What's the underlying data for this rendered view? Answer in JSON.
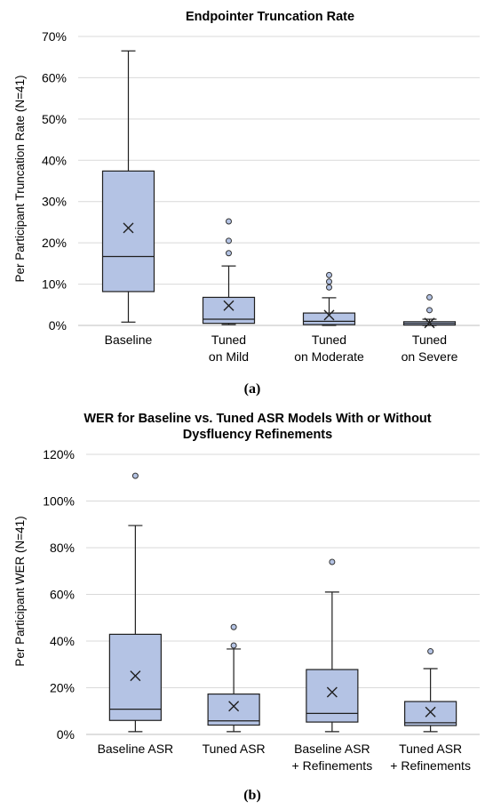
{
  "chart_data": [
    {
      "type": "box",
      "title": "Endpointer Truncation Rate",
      "ylabel": "Per Participant Truncation Rate (N=41)",
      "ylim": [
        0,
        70
      ],
      "yticks": [
        "0%",
        "10%",
        "20%",
        "30%",
        "40%",
        "50%",
        "60%",
        "70%"
      ],
      "grid": true,
      "caption": "(a)",
      "categories": [
        [
          "Baseline"
        ],
        [
          "Tuned",
          "on Mild"
        ],
        [
          "Tuned",
          "on Moderate"
        ],
        [
          "Tuned",
          "on Severe"
        ]
      ],
      "boxes": [
        {
          "min": 0.8,
          "q1": 8.2,
          "median": 16.7,
          "q3": 37.4,
          "max": 66.5,
          "mean": 23.6,
          "outliers": []
        },
        {
          "min": 0.2,
          "q1": 0.5,
          "median": 1.5,
          "q3": 6.8,
          "max": 14.4,
          "mean": 4.8,
          "outliers": [
            17.5,
            20.5,
            25.2
          ]
        },
        {
          "min": 0.0,
          "q1": 0.2,
          "median": 1.0,
          "q3": 3.0,
          "max": 6.7,
          "mean": 2.5,
          "outliers": [
            9.2,
            10.6,
            12.2
          ]
        },
        {
          "min": 0.0,
          "q1": 0.1,
          "median": 0.5,
          "q3": 0.9,
          "max": 1.5,
          "mean": 0.6,
          "outliers": [
            3.7,
            6.8
          ]
        }
      ]
    },
    {
      "type": "box",
      "title": "WER for Baseline vs. Tuned ASR Models With or Without Dysfluency Refinements",
      "title_lines": [
        "WER for Baseline vs. Tuned ASR Models With or Without",
        "Dysfluency Refinements"
      ],
      "ylabel": "Per Participant  WER (N=41)",
      "ylim": [
        0,
        120
      ],
      "yticks": [
        "0%",
        "20%",
        "40%",
        "60%",
        "80%",
        "100%",
        "120%"
      ],
      "grid": true,
      "caption": "(b)",
      "categories": [
        [
          "Baseline ASR"
        ],
        [
          "Tuned ASR"
        ],
        [
          "Baseline ASR",
          "+ Refinements"
        ],
        [
          "Tuned ASR",
          "+ Refinements"
        ]
      ],
      "boxes": [
        {
          "min": 1.2,
          "q1": 6.0,
          "median": 10.8,
          "q3": 42.9,
          "max": 89.5,
          "mean": 25.1,
          "outliers": [
            110.8
          ]
        },
        {
          "min": 1.2,
          "q1": 4.0,
          "median": 5.8,
          "q3": 17.3,
          "max": 36.6,
          "mean": 12.1,
          "outliers": [
            38.1,
            46.0
          ]
        },
        {
          "min": 1.2,
          "q1": 5.3,
          "median": 9.0,
          "q3": 27.8,
          "max": 61.0,
          "mean": 18.1,
          "outliers": [
            73.9
          ]
        },
        {
          "min": 1.2,
          "q1": 3.8,
          "median": 5.0,
          "q3": 14.1,
          "max": 28.2,
          "mean": 9.6,
          "outliers": [
            35.6
          ]
        }
      ]
    }
  ],
  "colors": {
    "box_fill": "#b4c3e4",
    "box_stroke": "#1f1f1f",
    "outlier_fill": "#b4c3e4",
    "grid": "#d9d9d9",
    "axis": "#bfbfbf",
    "text": "#000000"
  }
}
